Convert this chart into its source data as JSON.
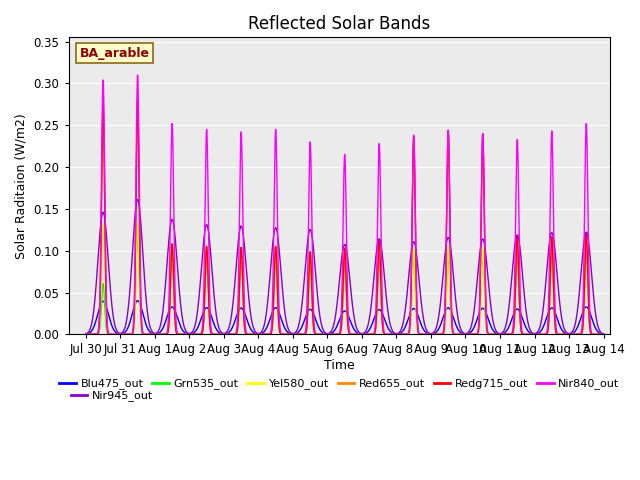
{
  "title": "Reflected Solar Bands",
  "xlabel": "Time",
  "ylabel": "Solar Raditaion (W/m2)",
  "annotation": "BA_arable",
  "ylim": [
    0.0,
    0.355
  ],
  "yticks": [
    0.0,
    0.05,
    0.1,
    0.15,
    0.2,
    0.25,
    0.3,
    0.35
  ],
  "x_tick_labels": [
    "Jul 30",
    "Jul 31",
    "Aug 1",
    "Aug 2",
    "Aug 3",
    "Aug 4",
    "Aug 5",
    "Aug 6",
    "Aug 7",
    "Aug 8",
    "Aug 9",
    "Aug 10",
    "Aug 11",
    "Aug 12",
    "Aug 13",
    "Aug 14"
  ],
  "x_tick_positions": [
    0,
    1,
    2,
    3,
    4,
    5,
    6,
    7,
    8,
    9,
    10,
    11,
    12,
    13,
    14,
    15
  ],
  "series_colors": {
    "Blu475_out": "#0000ff",
    "Grn535_out": "#00ff00",
    "Yel580_out": "#ffff00",
    "Red655_out": "#ff8800",
    "Redg715_out": "#ff0000",
    "Nir840_out": "#ff00ff",
    "Nir945_out": "#8800cc"
  },
  "nir840_peaks": [
    0.304,
    0.31,
    0.252,
    0.245,
    0.242,
    0.245,
    0.23,
    0.215,
    0.228,
    0.238,
    0.244,
    0.24,
    0.233,
    0.243,
    0.252
  ],
  "nir945_fractions": [
    0.48,
    0.52,
    0.545,
    0.535,
    0.535,
    0.52,
    0.545,
    0.5,
    0.5,
    0.465,
    0.475,
    0.475,
    0.51,
    0.5,
    0.485
  ],
  "redg715_fractions": [
    0.91,
    0.9,
    0.43,
    0.43,
    0.43,
    0.43,
    0.43,
    0.48,
    0.5,
    0.99,
    1.0,
    1.0,
    0.5,
    0.48,
    0.48
  ],
  "plot_bg_color": "#ebebeb",
  "grid_color": "#ffffff",
  "title_fontsize": 12,
  "label_fontsize": 9,
  "tick_fontsize": 8.5,
  "legend_fontsize": 8
}
